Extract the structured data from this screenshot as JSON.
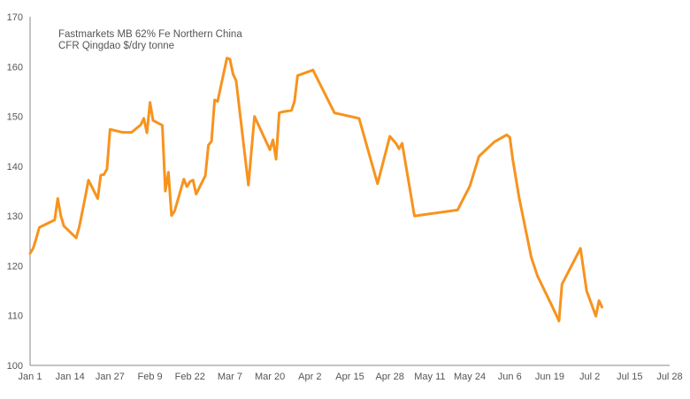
{
  "chart_data": {
    "type": "line",
    "title": "Fastmarkets MB 62% Fe Northern China",
    "subtitle": "CFR Qingdao $/dry tonne",
    "xlabel": "",
    "ylabel": "",
    "ylim": [
      100,
      170
    ],
    "yticks": [
      100,
      110,
      120,
      130,
      140,
      150,
      160,
      170
    ],
    "xticks": [
      "Jan 1",
      "Jan 14",
      "Jan 27",
      "Feb 9",
      "Feb 22",
      "Mar 7",
      "Mar 20",
      "Apr 2",
      "Apr 15",
      "Apr 28",
      "May 11",
      "May 24",
      "Jun 6",
      "Jun 19",
      "Jul 2",
      "Jul 15",
      "Jul 28"
    ],
    "grid": false,
    "legend": "none",
    "series": [
      {
        "name": "",
        "color": "#f7931e",
        "x": [
          "Jan 1",
          "Jan 2",
          "Jan 3",
          "Jan 4",
          "Jan 5",
          "Jan 9",
          "Jan 10",
          "Jan 11",
          "Jan 12",
          "Jan 16",
          "Jan 17",
          "Jan 19",
          "Jan 20",
          "Jan 23",
          "Jan 24",
          "Jan 25",
          "Jan 26",
          "Jan 27",
          "Jan 31",
          "Feb 3",
          "Feb 6",
          "Feb 7",
          "Feb 8",
          "Feb 9",
          "Feb 10",
          "Feb 13",
          "Feb 14",
          "Feb 15",
          "Feb 16",
          "Feb 17",
          "Feb 20",
          "Feb 21",
          "Feb 22",
          "Feb 23",
          "Feb 24",
          "Feb 27",
          "Feb 28",
          "Mar 1",
          "Mar 2",
          "Mar 3",
          "Mar 6",
          "Mar 7",
          "Mar 8",
          "Mar 9",
          "Mar 13",
          "Mar 15",
          "Mar 20",
          "Mar 21",
          "Mar 22",
          "Mar 23",
          "Mar 24",
          "Mar 27",
          "Mar 28",
          "Mar 29",
          "Apr 3",
          "Apr 10",
          "Apr 18",
          "Apr 24",
          "Apr 28",
          "Apr 30",
          "May 1",
          "May 2",
          "May 6",
          "May 20",
          "May 24",
          "May 27",
          "Jun 1",
          "Jun 5",
          "Jun 6",
          "Jun 7",
          "Jun 9",
          "Jun 13",
          "Jun 15",
          "Jun 20",
          "Jun 22",
          "Jun 23",
          "Jun 29",
          "Jul 1",
          "Jul 4",
          "Jul 5",
          "Jul 6"
        ],
        "values": [
          122.5,
          123.5,
          125.5,
          127.7,
          128.0,
          129.2,
          133.5,
          130.0,
          128.0,
          125.6,
          127.8,
          134.0,
          137.2,
          133.5,
          138.2,
          138.3,
          139.4,
          147.4,
          146.8,
          146.8,
          148.3,
          149.6,
          146.7,
          152.8,
          149.2,
          148.2,
          135.0,
          138.8,
          130.1,
          131.0,
          137.4,
          135.9,
          136.9,
          137.2,
          134.4,
          138.1,
          144.2,
          145.0,
          153.3,
          153.0,
          161.7,
          161.5,
          158.5,
          157.2,
          136.2,
          150.0,
          143.3,
          145.3,
          141.4,
          150.7,
          150.9,
          151.2,
          153.0,
          158.2,
          159.3,
          150.7,
          149.6,
          136.5,
          146.0,
          144.6,
          143.5,
          144.6,
          130.0,
          131.2,
          136.0,
          142.0,
          144.9,
          146.3,
          145.8,
          141.3,
          133.8,
          121.7,
          118.0,
          111.6,
          108.9,
          116.3,
          123.5,
          115.0,
          109.9,
          113.0,
          111.7
        ]
      }
    ]
  }
}
